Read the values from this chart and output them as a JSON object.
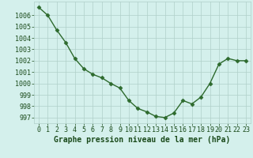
{
  "x": [
    0,
    1,
    2,
    3,
    4,
    5,
    6,
    7,
    8,
    9,
    10,
    11,
    12,
    13,
    14,
    15,
    16,
    17,
    18,
    19,
    20,
    21,
    22,
    23
  ],
  "y": [
    1006.7,
    1006.0,
    1004.7,
    1003.6,
    1002.2,
    1001.3,
    1000.8,
    1000.5,
    1000.0,
    999.6,
    998.5,
    997.8,
    997.5,
    997.1,
    997.0,
    997.4,
    998.5,
    998.2,
    998.8,
    1000.0,
    1001.7,
    1002.2,
    1002.0,
    1002.0
  ],
  "line_color": "#2d6a2d",
  "marker": "D",
  "marker_size": 2.5,
  "linewidth": 1.0,
  "bg_color": "#d4f0ec",
  "grid_color": "#b0cfc9",
  "xlabel": "Graphe pression niveau de la mer (hPa)",
  "xlabel_fontsize": 7,
  "xlabel_color": "#1a4a1a",
  "tick_color": "#1a4a1a",
  "tick_fontsize": 6,
  "ylim": [
    996.5,
    1007.2
  ],
  "yticks": [
    997,
    998,
    999,
    1000,
    1001,
    1002,
    1003,
    1004,
    1005,
    1006
  ],
  "xlim": [
    -0.5,
    23.5
  ],
  "xticks": [
    0,
    1,
    2,
    3,
    4,
    5,
    6,
    7,
    8,
    9,
    10,
    11,
    12,
    13,
    14,
    15,
    16,
    17,
    18,
    19,
    20,
    21,
    22,
    23
  ]
}
